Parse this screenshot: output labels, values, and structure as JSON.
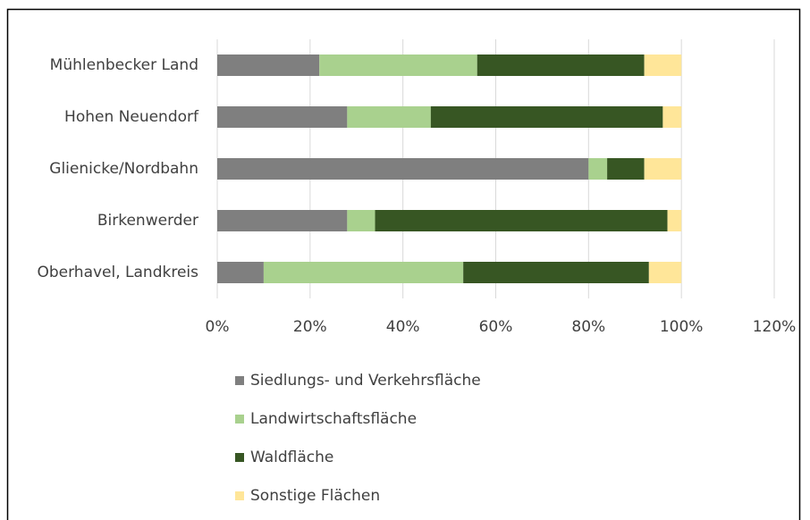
{
  "chart_data": {
    "type": "stacked-barh",
    "categories": [
      "Mühlenbecker Land",
      "Hohen Neuendorf",
      "Glienicke/Nordbahn",
      "Birkenwerder",
      "Oberhavel, Landkreis"
    ],
    "series": [
      {
        "name": "Siedlungs- und Verkehrsfläche",
        "color": "#7f7f7f",
        "values": [
          22,
          28,
          80,
          28,
          10
        ]
      },
      {
        "name": "Landwirtschaftsfläche",
        "color": "#a9d18e",
        "values": [
          34,
          18,
          4,
          6,
          43
        ]
      },
      {
        "name": "Waldfläche",
        "color": "#375623",
        "values": [
          36,
          50,
          8,
          63,
          40
        ]
      },
      {
        "name": "Sonstige Flächen",
        "color": "#ffe699",
        "values": [
          8,
          4,
          8,
          3,
          7
        ]
      }
    ],
    "xlim": [
      0,
      120
    ],
    "xticks": [
      {
        "value": 0,
        "label": "0%"
      },
      {
        "value": 20,
        "label": "20%"
      },
      {
        "value": 40,
        "label": "40%"
      },
      {
        "value": 60,
        "label": "60%"
      },
      {
        "value": 80,
        "label": "80%"
      },
      {
        "value": 100,
        "label": "100%"
      },
      {
        "value": 120,
        "label": "120%"
      }
    ],
    "grid": true
  }
}
